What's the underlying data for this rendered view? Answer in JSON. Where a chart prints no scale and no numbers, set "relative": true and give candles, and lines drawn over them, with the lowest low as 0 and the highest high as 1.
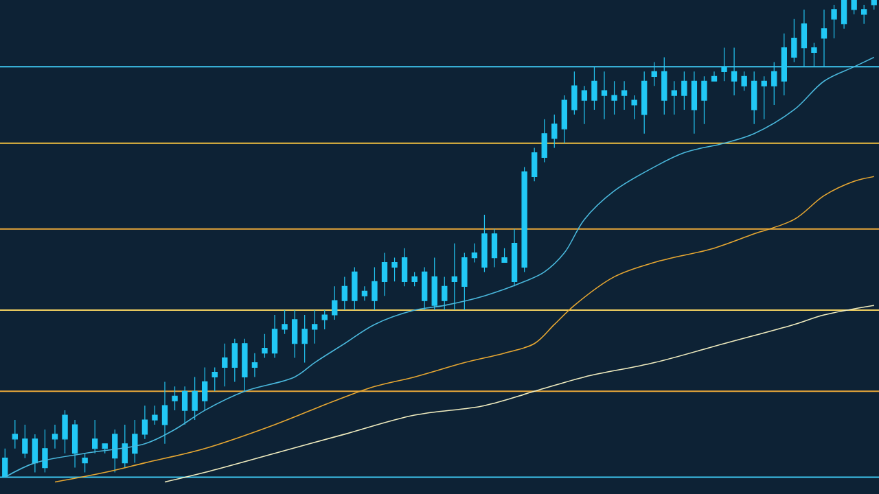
{
  "chart_data": {
    "type": "candlestick",
    "relative": true,
    "color": "#22c8f5",
    "categories": [
      null,
      null,
      null,
      null,
      null,
      null,
      null,
      null,
      null,
      null,
      null,
      null,
      null,
      null,
      null,
      null,
      null,
      null,
      null,
      null,
      null,
      null,
      null,
      null,
      null,
      null,
      null,
      null,
      null,
      null,
      null,
      null,
      null,
      null,
      null,
      null,
      null,
      null,
      null,
      null,
      null,
      null,
      null,
      null,
      null,
      null,
      null,
      null,
      null,
      null,
      null,
      null,
      null,
      null,
      null,
      null,
      null,
      null,
      null,
      null,
      null,
      null,
      null,
      null,
      null,
      null,
      null,
      null,
      null,
      null,
      null,
      null,
      null,
      null,
      null,
      null,
      null,
      null,
      null,
      null,
      null,
      null,
      null,
      null,
      null,
      null,
      null,
      null
    ],
    "ohlc": [
      [
        0.0,
        0.06,
        0.0,
        0.04
      ],
      [
        0.08,
        0.12,
        0.06,
        0.09
      ],
      [
        0.05,
        0.11,
        0.04,
        0.08
      ],
      [
        0.03,
        0.09,
        0.01,
        0.08
      ],
      [
        0.02,
        0.1,
        0.01,
        0.06
      ],
      [
        0.08,
        0.11,
        0.06,
        0.09
      ],
      [
        0.08,
        0.14,
        0.05,
        0.13
      ],
      [
        0.05,
        0.12,
        0.02,
        0.11
      ],
      [
        0.03,
        0.05,
        0.01,
        0.04
      ],
      [
        0.06,
        0.12,
        0.05,
        0.08
      ],
      [
        0.06,
        0.07,
        0.05,
        0.07
      ],
      [
        0.04,
        0.1,
        0.01,
        0.09
      ],
      [
        0.03,
        0.11,
        0.02,
        0.07
      ],
      [
        0.05,
        0.12,
        0.03,
        0.09
      ],
      [
        0.09,
        0.15,
        0.08,
        0.12
      ],
      [
        0.12,
        0.15,
        0.11,
        0.13
      ],
      [
        0.11,
        0.2,
        0.07,
        0.15
      ],
      [
        0.16,
        0.19,
        0.14,
        0.17
      ],
      [
        0.14,
        0.19,
        0.11,
        0.18
      ],
      [
        0.14,
        0.21,
        0.12,
        0.18
      ],
      [
        0.16,
        0.23,
        0.14,
        0.2
      ],
      [
        0.21,
        0.23,
        0.18,
        0.22
      ],
      [
        0.23,
        0.28,
        0.19,
        0.25
      ],
      [
        0.23,
        0.29,
        0.2,
        0.28
      ],
      [
        0.21,
        0.29,
        0.18,
        0.28
      ],
      [
        0.23,
        0.26,
        0.21,
        0.24
      ],
      [
        0.26,
        0.3,
        0.25,
        0.27
      ],
      [
        0.26,
        0.34,
        0.25,
        0.31
      ],
      [
        0.31,
        0.35,
        0.3,
        0.32
      ],
      [
        0.28,
        0.35,
        0.25,
        0.33
      ],
      [
        0.28,
        0.34,
        0.24,
        0.31
      ],
      [
        0.31,
        0.35,
        0.28,
        0.32
      ],
      [
        0.33,
        0.35,
        0.31,
        0.34
      ],
      [
        0.34,
        0.4,
        0.33,
        0.37
      ],
      [
        0.37,
        0.42,
        0.35,
        0.4
      ],
      [
        0.37,
        0.44,
        0.35,
        0.43
      ],
      [
        0.38,
        0.4,
        0.37,
        0.39
      ],
      [
        0.37,
        0.44,
        0.35,
        0.41
      ],
      [
        0.41,
        0.47,
        0.38,
        0.45
      ],
      [
        0.44,
        0.46,
        0.41,
        0.45
      ],
      [
        0.41,
        0.48,
        0.4,
        0.46
      ],
      [
        0.41,
        0.43,
        0.4,
        0.42
      ],
      [
        0.37,
        0.44,
        0.35,
        0.43
      ],
      [
        0.36,
        0.46,
        0.35,
        0.42
      ],
      [
        0.37,
        0.42,
        0.35,
        0.4
      ],
      [
        0.41,
        0.49,
        0.35,
        0.42
      ],
      [
        0.4,
        0.47,
        0.35,
        0.46
      ],
      [
        0.46,
        0.49,
        0.45,
        0.47
      ],
      [
        0.44,
        0.55,
        0.43,
        0.51
      ],
      [
        0.46,
        0.52,
        0.44,
        0.51
      ],
      [
        0.45,
        0.48,
        0.45,
        0.46
      ],
      [
        0.41,
        0.52,
        0.4,
        0.49
      ],
      [
        0.44,
        0.65,
        0.43,
        0.64
      ],
      [
        0.63,
        0.69,
        0.62,
        0.68
      ],
      [
        0.67,
        0.75,
        0.66,
        0.72
      ],
      [
        0.71,
        0.76,
        0.69,
        0.74
      ],
      [
        0.73,
        0.8,
        0.7,
        0.79
      ],
      [
        0.77,
        0.85,
        0.76,
        0.82
      ],
      [
        0.79,
        0.82,
        0.74,
        0.81
      ],
      [
        0.79,
        0.86,
        0.77,
        0.83
      ],
      [
        0.8,
        0.85,
        0.75,
        0.81
      ],
      [
        0.79,
        0.83,
        0.76,
        0.8
      ],
      [
        0.8,
        0.83,
        0.77,
        0.81
      ],
      [
        0.78,
        0.8,
        0.75,
        0.79
      ],
      [
        0.76,
        0.85,
        0.72,
        0.83
      ],
      [
        0.84,
        0.87,
        0.82,
        0.85
      ],
      [
        0.79,
        0.88,
        0.76,
        0.85
      ],
      [
        0.8,
        0.83,
        0.76,
        0.81
      ],
      [
        0.8,
        0.85,
        0.77,
        0.83
      ],
      [
        0.77,
        0.85,
        0.72,
        0.83
      ],
      [
        0.79,
        0.84,
        0.74,
        0.83
      ],
      [
        0.83,
        0.85,
        0.83,
        0.84
      ],
      [
        0.85,
        0.9,
        0.83,
        0.86
      ],
      [
        0.83,
        0.9,
        0.8,
        0.85
      ],
      [
        0.82,
        0.85,
        0.81,
        0.84
      ],
      [
        0.77,
        0.85,
        0.74,
        0.83
      ],
      [
        0.82,
        0.84,
        0.75,
        0.83
      ],
      [
        0.82,
        0.87,
        0.78,
        0.85
      ],
      [
        0.83,
        0.93,
        0.8,
        0.9
      ],
      [
        0.88,
        0.96,
        0.87,
        0.92
      ],
      [
        0.9,
        0.98,
        0.86,
        0.95
      ],
      [
        0.89,
        0.91,
        0.86,
        0.9
      ],
      [
        0.92,
        0.98,
        0.86,
        0.94
      ],
      [
        0.96,
        0.99,
        0.92,
        0.98
      ],
      [
        0.95,
        1.0,
        0.94,
        1.0
      ],
      [
        0.98,
        1.0,
        0.97,
        1.0
      ],
      [
        0.97,
        0.99,
        0.95,
        0.98
      ],
      [
        0.99,
        1.0,
        0.98,
        1.0
      ]
    ],
    "series": [
      {
        "type": "line",
        "color": "#4ab8dc",
        "values": [
          0.0,
          null,
          null,
          0.03,
          null,
          null,
          null,
          null,
          0.05,
          null,
          null,
          null,
          null,
          null,
          0.07,
          null,
          null,
          0.1,
          null,
          null,
          0.14,
          null,
          null,
          null,
          0.18,
          null,
          null,
          null,
          null,
          0.21,
          null,
          0.24,
          null,
          null,
          0.28,
          null,
          null,
          0.32,
          null,
          null,
          null,
          0.35,
          null,
          null,
          0.36,
          null,
          null,
          null,
          0.38,
          null,
          null,
          null,
          0.41,
          null,
          0.43,
          null,
          0.47,
          null,
          0.54,
          null,
          null,
          0.6,
          null,
          null,
          null,
          0.65,
          null,
          null,
          0.68,
          null,
          null,
          null,
          0.7,
          null,
          null,
          0.72,
          null,
          null,
          null,
          0.77,
          null,
          null,
          0.83,
          null,
          null,
          0.86,
          null,
          0.88
        ]
      },
      {
        "type": "line",
        "color": "#e8a832",
        "values": [
          null,
          null,
          null,
          null,
          null,
          -0.01,
          null,
          null,
          null,
          null,
          0.01,
          null,
          null,
          null,
          0.03,
          null,
          null,
          null,
          null,
          null,
          0.06,
          null,
          null,
          null,
          null,
          null,
          null,
          0.11,
          null,
          null,
          null,
          null,
          null,
          0.16,
          null,
          null,
          null,
          0.19,
          null,
          null,
          null,
          0.21,
          null,
          null,
          null,
          null,
          0.24,
          null,
          null,
          null,
          0.26,
          null,
          null,
          0.28,
          null,
          0.32,
          null,
          0.36,
          null,
          null,
          null,
          0.42,
          null,
          null,
          null,
          0.45,
          null,
          null,
          null,
          null,
          null,
          0.48,
          null,
          null,
          null,
          0.51,
          null,
          null,
          null,
          0.54,
          null,
          null,
          0.59,
          null,
          null,
          0.62,
          null,
          0.63
        ]
      },
      {
        "type": "line",
        "color": "#f2eec0",
        "values": [
          null,
          null,
          null,
          null,
          null,
          null,
          null,
          null,
          null,
          null,
          null,
          null,
          null,
          null,
          null,
          null,
          -0.01,
          null,
          null,
          null,
          0.01,
          null,
          null,
          null,
          null,
          null,
          null,
          0.05,
          null,
          null,
          null,
          null,
          null,
          null,
          0.09,
          null,
          null,
          null,
          null,
          null,
          null,
          0.13,
          null,
          null,
          null,
          null,
          null,
          null,
          0.15,
          null,
          null,
          null,
          null,
          0.18,
          null,
          null,
          null,
          null,
          0.21,
          null,
          null,
          null,
          null,
          null,
          null,
          0.24,
          null,
          null,
          null,
          null,
          null,
          null,
          0.28,
          null,
          null,
          null,
          null,
          null,
          null,
          0.32,
          null,
          null,
          0.34,
          null,
          null,
          null,
          null,
          0.36
        ]
      }
    ],
    "ref_lines": [
      {
        "axis": "y",
        "value": 0.86,
        "color": "#3fc6f0"
      },
      {
        "axis": "y",
        "value": 0.7,
        "color": "#f0c040"
      },
      {
        "axis": "y",
        "value": 0.52,
        "color": "#e8a83a"
      },
      {
        "axis": "y",
        "value": 0.35,
        "color": "#f0d060"
      },
      {
        "axis": "y",
        "value": 0.18,
        "color": "#e8a83a"
      },
      {
        "axis": "y",
        "value": 0.0,
        "color": "#3fc6f0"
      }
    ]
  }
}
